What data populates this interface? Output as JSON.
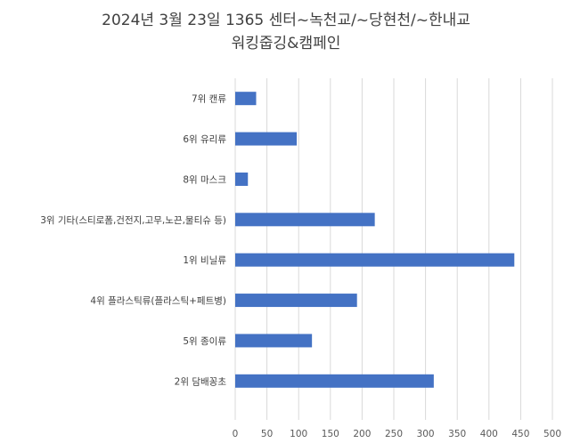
{
  "chart_data": {
    "type": "bar",
    "orientation": "horizontal",
    "title_lines": [
      "2024년 3월 23일 1365 센터~녹천교/~당현천/~한내교",
      "워킹줍깅&캠페인"
    ],
    "categories": [
      "7위 캔류",
      "6위 유리류",
      "8위 마스크",
      "3위 기타(스티로폼,건전지,고무,노끈,물티슈 등)",
      "1위 비닐류",
      "4위 플라스틱류(플라스틱+페트병)",
      "5위 종이류",
      "2위 담배꽁초"
    ],
    "values": [
      33,
      97,
      20,
      220,
      440,
      192,
      121,
      313
    ],
    "xlim": [
      0,
      500
    ],
    "xticks": [
      0,
      50,
      100,
      150,
      200,
      250,
      300,
      350,
      400,
      450,
      500
    ],
    "bar_color": "#4472C4",
    "gridlines": "vertical",
    "legend": "none"
  }
}
